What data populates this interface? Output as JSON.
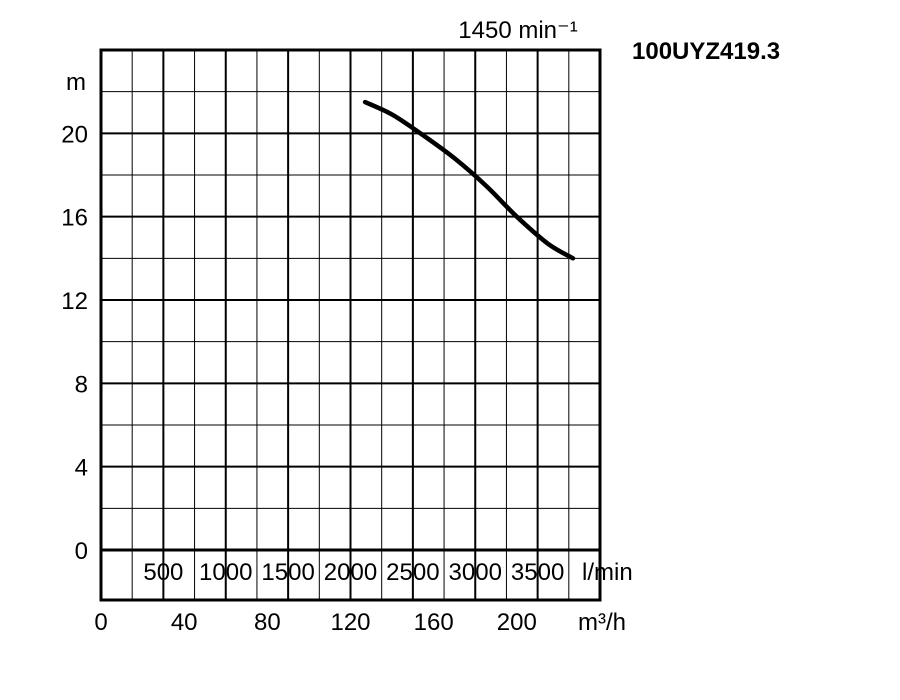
{
  "chart_data": {
    "type": "line",
    "model": "100UYZ419.3",
    "speed_label": "1450 min⁻¹",
    "y_unit": "m",
    "y_ticks": [
      "0",
      "4",
      "8",
      "12",
      "16",
      "20"
    ],
    "ylim": [
      0,
      24
    ],
    "x_unit_lmin": "l/min",
    "x_ticks_lmin": [
      "500",
      "1000",
      "1500",
      "2000",
      "2500",
      "3000",
      "3500"
    ],
    "x_unit_m3h": "m³/h",
    "x_ticks_m3h": [
      "0",
      "40",
      "80",
      "120",
      "160",
      "200"
    ],
    "xlim_m3h": [
      0,
      240
    ],
    "grid": true,
    "series": [
      {
        "x": [
          127,
          140,
          155,
          170,
          185,
          200,
          215,
          227
        ],
        "y": [
          21.5,
          20.9,
          19.9,
          18.8,
          17.5,
          16.0,
          14.7,
          14.0
        ]
      }
    ]
  }
}
